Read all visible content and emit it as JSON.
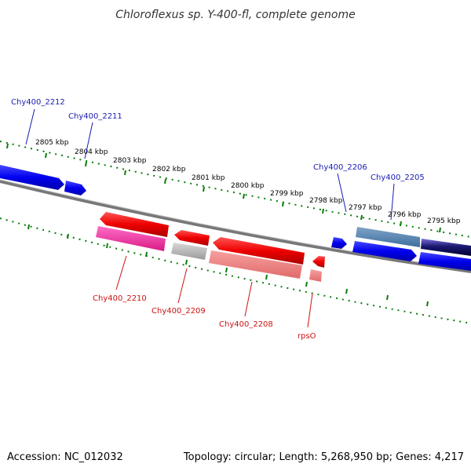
{
  "title": "Chloroflexus sp. Y-400-fl, complete genome",
  "footer": {
    "accession": "Accession: NC_012032",
    "summary": "Topology: circular; Length: 5,268,950 bp; Genes: 4,217"
  },
  "colors": {
    "forward_scale": "#0a7d0a",
    "backbone": "#808080",
    "forward_label": "#1a1ab4",
    "reverse_label": "#cc1111"
  },
  "kbp_labels": [
    "2805 kbp",
    "2804 kbp",
    "2803 kbp",
    "2802 kbp",
    "2801 kbp",
    "2800 kbp",
    "2799 kbp",
    "2798 kbp",
    "2797 kbp",
    "2796 kbp",
    "2795 kbp"
  ],
  "gene_labels": {
    "forward": [
      "Chy400_2212",
      "Chy400_2211",
      "Chy400_2206",
      "Chy400_2205"
    ],
    "reverse": [
      "Chy400_2210",
      "Chy400_2209",
      "Chy400_2208",
      "rpsO"
    ]
  }
}
